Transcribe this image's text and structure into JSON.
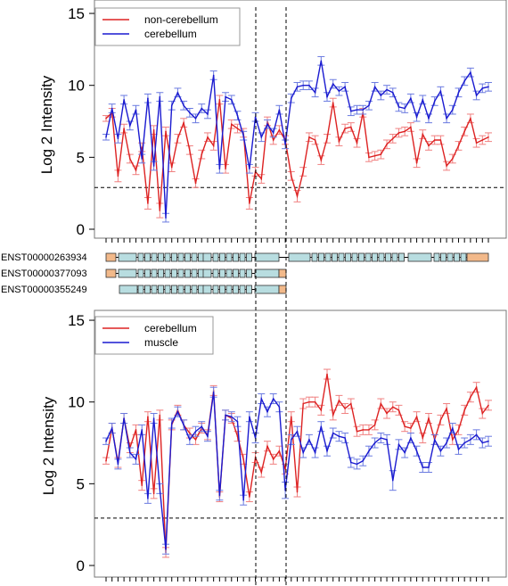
{
  "chart_data": [
    {
      "type": "line",
      "ylabel": "Log 2 Intensity",
      "ylim": [
        -0.4,
        15.4
      ],
      "yticks": [
        0,
        5,
        10,
        15
      ],
      "threshold": 2.9,
      "legend_position": "top-left",
      "series": [
        {
          "name": "non-cerebellum",
          "color": "#dd2222",
          "error_color": "#f08080",
          "values": [
            7.7,
            8.1,
            3.7,
            7.0,
            4.9,
            4.1,
            5.7,
            1.8,
            6.9,
            1.3,
            6.8,
            4.3,
            6.3,
            7.4,
            5.5,
            3.2,
            5.2,
            6.4,
            5.8,
            9.0,
            4.2,
            7.3,
            7.0,
            6.7,
            1.8,
            4.0,
            3.5,
            7.5,
            6.2,
            6.9,
            6.2,
            3.7,
            2.3,
            4.0,
            6.4,
            6.2,
            4.8,
            6.3,
            8.8,
            6.1,
            7.0,
            7.1,
            6.0,
            8.1,
            5.0,
            5.1,
            5.2,
            5.9,
            6.3,
            6.7,
            6.8,
            7.1,
            4.6,
            6.6,
            5.8,
            6.2,
            6.2,
            4.4,
            4.9,
            5.8,
            6.8,
            7.7,
            6.0,
            6.2,
            6.4
          ],
          "errors": [
            0.2,
            0.3,
            0.4,
            0.3,
            0.3,
            0.3,
            0.3,
            0.4,
            0.3,
            0.5,
            0.3,
            0.3,
            0.3,
            0.3,
            0.3,
            0.3,
            0.3,
            0.3,
            0.3,
            0.3,
            0.3,
            0.3,
            0.3,
            0.3,
            0.4,
            0.3,
            0.3,
            0.3,
            0.3,
            0.3,
            0.3,
            0.3,
            0.4,
            0.3,
            0.3,
            0.3,
            0.3,
            0.3,
            0.3,
            0.3,
            0.3,
            0.3,
            0.3,
            0.3,
            0.3,
            0.3,
            0.3,
            0.3,
            0.3,
            0.3,
            0.3,
            0.3,
            0.3,
            0.3,
            0.3,
            0.3,
            0.3,
            0.3,
            0.3,
            0.3,
            0.3,
            0.3,
            0.3,
            0.3,
            0.3
          ]
        },
        {
          "name": "cerebellum",
          "color": "#1a1ad0",
          "error_color": "#6a7ae0",
          "values": [
            6.4,
            8.4,
            6.3,
            9.0,
            7.2,
            8.3,
            4.9,
            9.1,
            4.4,
            9.2,
            0.8,
            8.6,
            9.5,
            8.6,
            8.1,
            7.7,
            8.4,
            8.0,
            10.7,
            4.2,
            9.2,
            9.0,
            7.9,
            6.5,
            4.2,
            7.8,
            6.4,
            7.3,
            6.7,
            8.3,
            5.9,
            9.1,
            9.9,
            10.0,
            10.0,
            9.5,
            11.7,
            9.2,
            10.1,
            9.6,
            9.9,
            8.2,
            8.3,
            8.3,
            8.6,
            9.9,
            9.3,
            9.7,
            9.5,
            8.5,
            8.4,
            9.1,
            7.8,
            9.0,
            7.7,
            8.9,
            9.6,
            7.7,
            8.3,
            9.5,
            10.3,
            10.9,
            9.3,
            9.8,
            9.9
          ],
          "errors": [
            0.2,
            0.3,
            0.3,
            0.3,
            0.3,
            0.3,
            0.3,
            0.3,
            0.3,
            0.3,
            0.3,
            0.3,
            0.3,
            0.3,
            0.3,
            0.3,
            0.3,
            0.3,
            0.3,
            0.3,
            0.3,
            0.3,
            0.3,
            0.3,
            0.3,
            0.3,
            0.3,
            0.3,
            0.3,
            0.3,
            0.3,
            0.3,
            0.3,
            0.3,
            0.3,
            0.3,
            0.3,
            0.3,
            0.3,
            0.3,
            0.3,
            0.3,
            0.3,
            0.3,
            0.3,
            0.3,
            0.3,
            0.3,
            0.3,
            0.3,
            0.3,
            0.3,
            0.3,
            0.3,
            0.3,
            0.3,
            0.3,
            0.3,
            0.3,
            0.3,
            0.3,
            0.3,
            0.3,
            0.3,
            0.3
          ]
        }
      ]
    },
    {
      "type": "line",
      "ylabel": "Log 2 Intensity",
      "ylim": [
        -0.4,
        15.4
      ],
      "yticks": [
        0,
        5,
        10,
        15
      ],
      "threshold": 2.9,
      "legend_position": "top-left",
      "series": [
        {
          "name": "cerebellum",
          "color": "#dd2222",
          "error_color": "#f08080",
          "values": [
            6.4,
            8.4,
            6.3,
            9.0,
            7.2,
            8.3,
            4.9,
            9.1,
            4.4,
            9.2,
            0.8,
            8.6,
            9.5,
            8.6,
            8.1,
            7.7,
            8.4,
            8.0,
            10.7,
            4.2,
            9.2,
            9.0,
            7.9,
            6.5,
            4.2,
            6.6,
            5.7,
            7.3,
            6.5,
            7.0,
            5.9,
            9.1,
            4.5,
            9.9,
            10.0,
            10.0,
            9.5,
            11.7,
            9.2,
            10.1,
            9.6,
            9.9,
            8.2,
            8.3,
            8.3,
            8.6,
            9.9,
            9.3,
            9.7,
            9.5,
            8.5,
            8.4,
            9.1,
            7.8,
            9.0,
            7.7,
            8.9,
            9.6,
            7.7,
            8.3,
            9.5,
            10.3,
            10.9,
            9.3,
            9.8
          ],
          "errors": [
            0.2,
            0.3,
            0.3,
            0.3,
            0.3,
            0.3,
            0.3,
            0.3,
            0.3,
            0.3,
            0.3,
            0.3,
            0.3,
            0.3,
            0.3,
            0.3,
            0.3,
            0.3,
            0.3,
            0.3,
            0.3,
            0.3,
            0.3,
            0.3,
            0.3,
            0.3,
            0.3,
            0.3,
            0.3,
            0.3,
            0.3,
            0.3,
            0.3,
            0.3,
            0.3,
            0.3,
            0.3,
            0.3,
            0.3,
            0.3,
            0.3,
            0.3,
            0.3,
            0.3,
            0.3,
            0.3,
            0.3,
            0.3,
            0.3,
            0.3,
            0.3,
            0.3,
            0.3,
            0.3,
            0.3,
            0.3,
            0.3,
            0.3,
            0.3,
            0.3,
            0.3,
            0.3,
            0.3,
            0.3,
            0.3
          ]
        },
        {
          "name": "muscle",
          "color": "#1a1ad0",
          "error_color": "#6a7ae0",
          "values": [
            7.6,
            8.4,
            6.2,
            9.0,
            6.9,
            6.5,
            8.3,
            4.1,
            9.0,
            4.7,
            1.0,
            8.7,
            9.4,
            8.6,
            7.7,
            8.2,
            8.5,
            7.9,
            10.6,
            4.3,
            9.2,
            9.1,
            8.8,
            4.0,
            9.1,
            7.8,
            10.2,
            9.4,
            10.2,
            9.7,
            4.6,
            7.7,
            8.2,
            6.9,
            7.7,
            6.9,
            8.5,
            7.0,
            8.1,
            7.9,
            7.8,
            6.3,
            6.2,
            6.4,
            7.0,
            7.5,
            7.8,
            7.7,
            5.2,
            7.4,
            6.9,
            7.8,
            7.0,
            6.0,
            6.0,
            7.7,
            7.0,
            7.5,
            8.4,
            7.1,
            7.5,
            7.7,
            8.0,
            7.5,
            7.6
          ],
          "errors": [
            0.2,
            0.3,
            0.3,
            0.3,
            0.3,
            0.3,
            0.3,
            0.3,
            0.3,
            0.3,
            0.3,
            0.3,
            0.3,
            0.3,
            0.3,
            0.3,
            0.3,
            0.3,
            0.3,
            0.3,
            0.3,
            0.3,
            0.3,
            0.3,
            0.3,
            0.3,
            0.3,
            0.3,
            0.3,
            0.3,
            0.5,
            0.3,
            0.3,
            0.3,
            0.3,
            0.3,
            0.3,
            0.3,
            0.3,
            0.3,
            0.3,
            0.3,
            0.3,
            0.3,
            0.3,
            0.3,
            0.3,
            0.3,
            0.6,
            0.3,
            0.3,
            0.3,
            0.3,
            0.3,
            0.3,
            0.3,
            0.3,
            0.3,
            0.3,
            0.3,
            0.3,
            0.3,
            0.3,
            0.3,
            0.3
          ]
        }
      ]
    }
  ],
  "transcripts": [
    {
      "id": "ENST00000263934"
    },
    {
      "id": "ENST00000377093"
    },
    {
      "id": "ENST00000355249"
    }
  ],
  "colors": {
    "exon": "#b8dde0",
    "utr": "#f2b98a",
    "grid_line": "#000000",
    "frame": "#777777"
  }
}
